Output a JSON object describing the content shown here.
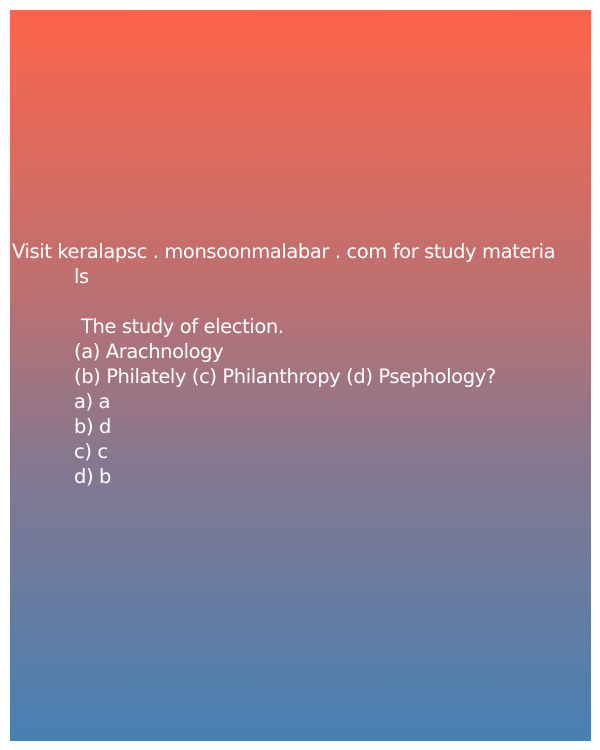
{
  "banner": {
    "line1": "Visit keralapsc . monsoonmalabar . com for study materia",
    "line2": "ls"
  },
  "question": {
    "text": "The study of election.",
    "choices_line1": "(a) Arachnology",
    "choices_line2": "(b) Philately (c) Philanthropy (d) Psephology?"
  },
  "options": [
    "a) a",
    "b) d",
    "c) c",
    "d) b"
  ],
  "colors": {
    "gradient_top": "#fe644a",
    "gradient_bottom": "#4780b3",
    "text": "#ffffff"
  }
}
